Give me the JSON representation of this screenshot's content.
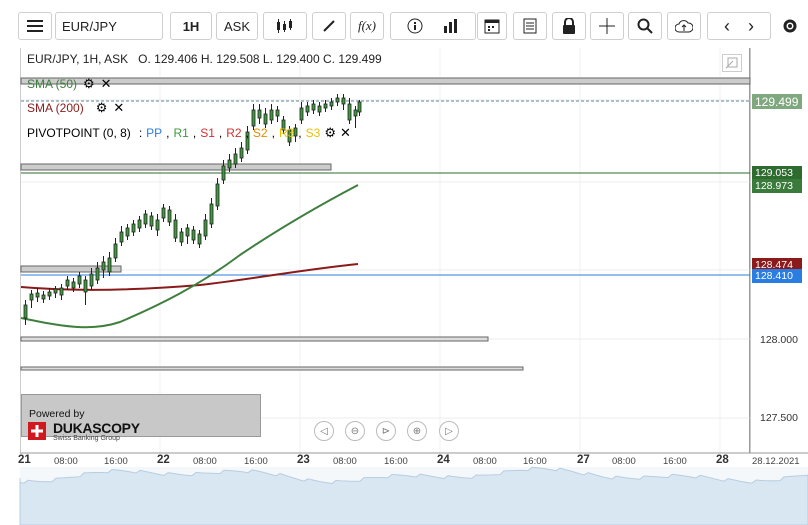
{
  "toolbar": {
    "symbol": "EUR/JPY",
    "timeframe": "1H",
    "price_side": "ASK",
    "fx_label": "f(x)"
  },
  "chart": {
    "header": {
      "pair_tf": "EUR/JPY, 1H, ASK",
      "ohlc": "O. 129.406 H. 129.508 L. 129.400 C. 129.499"
    },
    "indicators": [
      {
        "label": "SMA (50)",
        "color": "#3e7f3e"
      },
      {
        "label": "SMA (200)",
        "color": "#8b1a1a"
      },
      {
        "label": "PIVOTPOINT (0, 8)",
        "color": "#222222"
      }
    ],
    "pivot_legend": [
      {
        "label": "PP",
        "color": "#2a7de1"
      },
      {
        "label": "R1",
        "color": "#3e9a3e"
      },
      {
        "label": "S1",
        "color": "#d03030"
      },
      {
        "label": "R2",
        "color": "#d03030"
      },
      {
        "label": "S2",
        "color": "#e08a00"
      },
      {
        "label": "R3",
        "color": "#e8c000"
      },
      {
        "label": "S3",
        "color": "#e8c000"
      }
    ],
    "y_axis": [
      "128.000",
      "127.500"
    ],
    "price_tags": [
      {
        "value": "129.499",
        "color": "#7fa87f"
      },
      {
        "value": "129.053",
        "color": "#2e6b2e"
      },
      {
        "value": "128.973",
        "color": "#3a7a3a"
      },
      {
        "value": "128.474",
        "color": "#8b1a1a"
      },
      {
        "value": "128.410",
        "color": "#2a7de1"
      }
    ],
    "x_axis": {
      "days": [
        "21",
        "22",
        "23",
        "24",
        "27",
        "28"
      ],
      "times": [
        "08:00",
        "16:00",
        "08:00",
        "16:00",
        "08:00",
        "16:00",
        "08:00",
        "16:00",
        "08:00",
        "16:00"
      ],
      "last_date": "28.12.2021"
    },
    "watermark": {
      "powered_by": "Powered by",
      "brand": "DUKASCOPY",
      "sub": "Swiss Banking Group"
    }
  }
}
